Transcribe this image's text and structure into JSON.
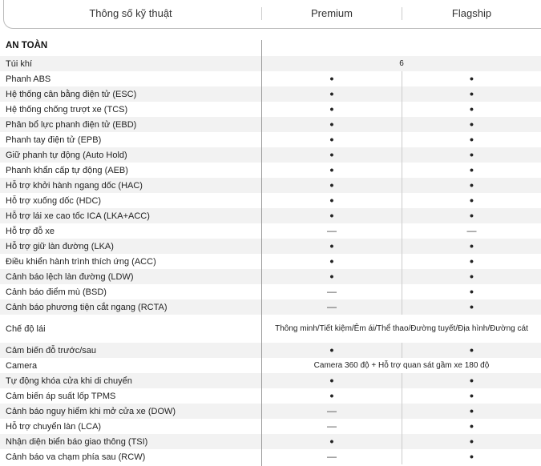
{
  "header": {
    "spec": "Thông số kỹ thuật",
    "premium": "Premium",
    "flagship": "Flagship"
  },
  "section_title": "AN TOÀN",
  "symbols": {
    "dot": "•",
    "dash": "—"
  },
  "rows": [
    {
      "label": "Túi khí",
      "span": "6"
    },
    {
      "label": "Phanh ABS",
      "premium": "dot",
      "flagship": "dot"
    },
    {
      "label": "Hệ thống cân bằng điện tử (ESC)",
      "premium": "dot",
      "flagship": "dot"
    },
    {
      "label": "Hệ thống chống trượt xe (TCS)",
      "premium": "dot",
      "flagship": "dot"
    },
    {
      "label": "Phân bổ lực phanh điện tử (EBD)",
      "premium": "dot",
      "flagship": "dot"
    },
    {
      "label": "Phanh tay điện tử (EPB)",
      "premium": "dot",
      "flagship": "dot"
    },
    {
      "label": "Giữ phanh tự động (Auto Hold)",
      "premium": "dot",
      "flagship": "dot"
    },
    {
      "label": "Phanh khẩn cấp tự động (AEB)",
      "premium": "dot",
      "flagship": "dot"
    },
    {
      "label": "Hỗ trợ khởi hành ngang dốc (HAC)",
      "premium": "dot",
      "flagship": "dot"
    },
    {
      "label": "Hỗ trợ xuống dốc (HDC)",
      "premium": "dot",
      "flagship": "dot"
    },
    {
      "label": "Hỗ trợ lái xe cao tốc ICA (LKA+ACC)",
      "premium": "dot",
      "flagship": "dot"
    },
    {
      "label": "Hỗ trợ đỗ xe",
      "premium": "dash",
      "flagship": "dash"
    },
    {
      "label": "Hỗ trợ giữ làn đường (LKA)",
      "premium": "dot",
      "flagship": "dot"
    },
    {
      "label": "Điều khiển hành trình thích ứng (ACC)",
      "premium": "dot",
      "flagship": "dot"
    },
    {
      "label": "Cảnh báo lệch làn đường (LDW)",
      "premium": "dot",
      "flagship": "dot"
    },
    {
      "label": "Cảnh báo điểm mù (BSD)",
      "premium": "dash",
      "flagship": "dot"
    },
    {
      "label": "Cảnh báo phương tiện cắt ngang (RCTA)",
      "premium": "dash",
      "flagship": "dot"
    },
    {
      "label": "Chế độ lái",
      "span_lines": [
        "Thông minh/Tiết kiệm/Êm ái/",
        "Thể thao/Đường tuyết/Địa hình/Đường cát"
      ]
    },
    {
      "label": "Cảm biến đỗ trước/sau",
      "premium": "dot",
      "flagship": "dot"
    },
    {
      "label": "Camera",
      "span": "Camera 360 độ + Hỗ trợ quan sát gầm xe 180 độ"
    },
    {
      "label": "Tự động khóa cửa khi di chuyển",
      "premium": "dot",
      "flagship": "dot"
    },
    {
      "label": "Cảm biến áp suất lốp TPMS",
      "premium": "dot",
      "flagship": "dot"
    },
    {
      "label": "Cảnh báo nguy hiểm khi mở cửa xe (DOW)",
      "premium": "dash",
      "flagship": "dot"
    },
    {
      "label": "Hỗ trợ chuyển làn (LCA)",
      "premium": "dash",
      "flagship": "dot"
    },
    {
      "label": "Nhận diện biển báo giao thông (TSI)",
      "premium": "dot",
      "flagship": "dot"
    },
    {
      "label": "Cảnh báo va chạm phía sau (RCW)",
      "premium": "dash",
      "flagship": "dot"
    }
  ]
}
